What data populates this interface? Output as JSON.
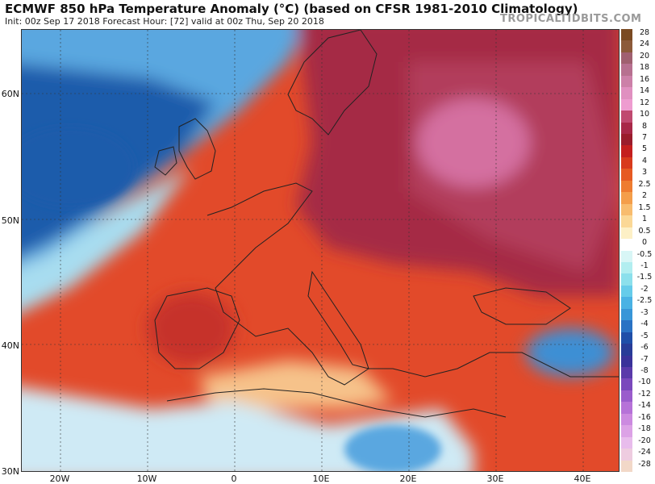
{
  "header": {
    "title": "ECMWF 850 hPa Temperature Anomaly (°C) (based on CFSR 1981-2010 Climatology)",
    "subtitle": "Init: 00z Sep 17 2018   Forecast Hour: [72]   valid at 00z Thu, Sep 20 2018",
    "logo": "TROPICALTIDBITS.COM"
  },
  "axes": {
    "lat_labels": [
      "60N",
      "50N",
      "40N",
      "30N"
    ],
    "lon_labels": [
      "20W",
      "10W",
      "0",
      "10E",
      "20E",
      "30E",
      "40E"
    ]
  },
  "colorbar": {
    "labels": [
      "28",
      "24",
      "20",
      "18",
      "16",
      "14",
      "12",
      "10",
      "8",
      "7",
      "5",
      "4",
      "3",
      "2.5",
      "2",
      "1.5",
      "1",
      "0.5",
      "0",
      "-0.5",
      "-1",
      "-1.5",
      "-2",
      "-2.5",
      "-3",
      "-4",
      "-5",
      "-6",
      "-7",
      "-8",
      "-10",
      "-12",
      "-14",
      "-16",
      "-18",
      "-20",
      "-24",
      "-28"
    ],
    "colors": [
      "#7a4a22",
      "#8c5a3a",
      "#a06070",
      "#b77090",
      "#cc80a8",
      "#e090c0",
      "#ee9cd0",
      "#c04a70",
      "#a82848",
      "#9a1c2c",
      "#c41e1e",
      "#d83a1c",
      "#e65a22",
      "#ee7c30",
      "#f49e4a",
      "#f8bc6e",
      "#fbd896",
      "#fdf0c6",
      "#ffffff",
      "#d8f6f6",
      "#b2eef0",
      "#8ce0ec",
      "#66ccea",
      "#4ab2e4",
      "#3896d8",
      "#2a72c4",
      "#1f4ea8",
      "#283c98",
      "#3a329a",
      "#5a3aaa",
      "#7a48bc",
      "#9a5ccc",
      "#b672d8",
      "#cc8ae0",
      "#dca2e6",
      "#e8bcec",
      "#eecce0",
      "#f2d8c8"
    ]
  },
  "map_regions": {
    "atlantic_cold": "#1f5cab",
    "atlantic_cool": "#5aa7e0",
    "north_sea_band": "#a8ddf0",
    "western_europe": "#e0492a",
    "iberia": "#c6302a",
    "central_europe": "#a52a45",
    "eastern_europe": "#b23c5c",
    "baltic_hotspot": "#d470a0",
    "mediterranean_south": "#f6c28a",
    "north_africa": "#cfeaf5",
    "turkey_cold": "#3c8fd4",
    "grid_color": "#333333"
  }
}
